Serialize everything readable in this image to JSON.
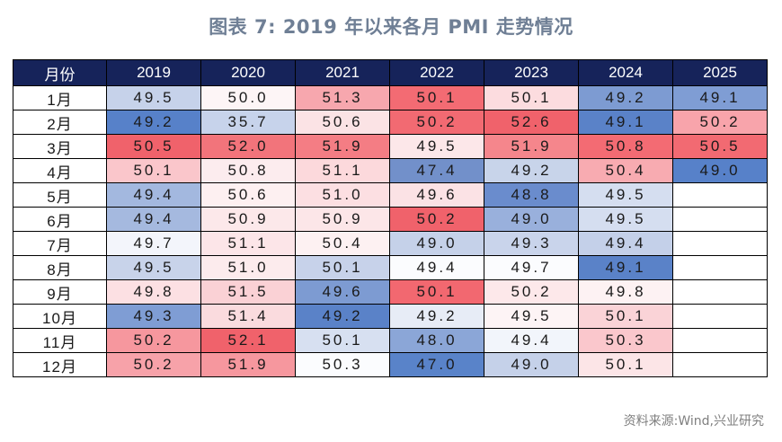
{
  "title": "图表 7:  2019 年以来各月 PMI 走势情况",
  "source": "资料来源:Wind,兴业研究",
  "table": {
    "headers": [
      "月份",
      "2019",
      "2020",
      "2021",
      "2022",
      "2023",
      "2024",
      "2025"
    ],
    "rows": [
      {
        "month": "1月",
        "values": [
          "49.5",
          "50.0",
          "51.3",
          "50.1",
          "50.1",
          "49.2",
          "49.1"
        ],
        "colors": [
          "#c6d2ea",
          "#fdf5f6",
          "#f7a7ae",
          "#f36b73",
          "#fcdcdf",
          "#7d9bd2",
          "#7f9dd4"
        ]
      },
      {
        "month": "2月",
        "values": [
          "49.2",
          "35.7",
          "50.6",
          "50.2",
          "52.6",
          "49.1",
          "50.2"
        ],
        "colors": [
          "#5781c9",
          "#c7d3eb",
          "#fbe3e5",
          "#f26a72",
          "#f0626b",
          "#5a82c8",
          "#f8a4ab"
        ]
      },
      {
        "month": "3月",
        "values": [
          "50.5",
          "52.0",
          "51.9",
          "49.5",
          "51.9",
          "50.8",
          "50.5"
        ],
        "colors": [
          "#f0626b",
          "#f2747b",
          "#f47d84",
          "#fce7e9",
          "#f5868c",
          "#f36b73",
          "#f26a72"
        ]
      },
      {
        "month": "4月",
        "values": [
          "50.1",
          "50.8",
          "51.1",
          "47.4",
          "49.2",
          "50.4",
          "49.0"
        ],
        "colors": [
          "#fac6cb",
          "#fcecee",
          "#fcd9dc",
          "#7290ca",
          "#c8d4ea",
          "#f8abb1",
          "#5781c9"
        ]
      },
      {
        "month": "5月",
        "values": [
          "49.4",
          "50.6",
          "51.0",
          "49.6",
          "48.8",
          "49.5",
          ""
        ],
        "colors": [
          "#a3b8df",
          "#fdf0f1",
          "#fcdfe2",
          "#fbe2e5",
          "#6a8ccd",
          "#d5def0",
          "#ffffff"
        ]
      },
      {
        "month": "6月",
        "values": [
          "49.4",
          "50.9",
          "50.9",
          "50.2",
          "49.0",
          "49.5",
          ""
        ],
        "colors": [
          "#a5b9df",
          "#fce8ea",
          "#fce6e8",
          "#f0626b",
          "#99b0dc",
          "#d5def0",
          "#ffffff"
        ]
      },
      {
        "month": "7月",
        "values": [
          "49.7",
          "51.1",
          "50.4",
          "49.0",
          "49.3",
          "49.4",
          ""
        ],
        "colors": [
          "#f3f5fb",
          "#fce5e8",
          "#fdf1f2",
          "#c5d1e9",
          "#c9d4eb",
          "#c4d0e9",
          "#ffffff"
        ]
      },
      {
        "month": "8月",
        "values": [
          "49.5",
          "51.0",
          "50.1",
          "49.4",
          "49.7",
          "49.1",
          ""
        ],
        "colors": [
          "#c8d3ea",
          "#fcebed",
          "#c7d2ea",
          "#fbfcfe",
          "#fbfcfe",
          "#5a82c8",
          "#ffffff"
        ]
      },
      {
        "month": "9月",
        "values": [
          "49.8",
          "51.5",
          "49.6",
          "50.1",
          "50.2",
          "49.8",
          ""
        ],
        "colors": [
          "#fce0e3",
          "#fad1d5",
          "#7d9bd2",
          "#f26870",
          "#fde8ea",
          "#fdf2f3",
          "#ffffff"
        ]
      },
      {
        "month": "10月",
        "values": [
          "49.3",
          "51.4",
          "49.2",
          "49.2",
          "49.5",
          "50.1",
          ""
        ],
        "colors": [
          "#7f9dd4",
          "#fadbde",
          "#5a82c8",
          "#e7ecf6",
          "#fdf4f5",
          "#fad3d7",
          "#ffffff"
        ]
      },
      {
        "month": "11月",
        "values": [
          "50.2",
          "52.1",
          "50.1",
          "48.0",
          "49.4",
          "50.3",
          ""
        ],
        "colors": [
          "#f6979e",
          "#f0626b",
          "#d7e0f1",
          "#8ba6d7",
          "#f2f5fb",
          "#fac7cc",
          "#ffffff"
        ]
      },
      {
        "month": "12月",
        "values": [
          "50.2",
          "51.9",
          "50.3",
          "47.0",
          "49.0",
          "50.1",
          ""
        ],
        "colors": [
          "#f7a2a9",
          "#f6979e",
          "#fbfcfe",
          "#5983c9",
          "#c5d1e9",
          "#fce5e7",
          "#ffffff"
        ]
      }
    ]
  }
}
